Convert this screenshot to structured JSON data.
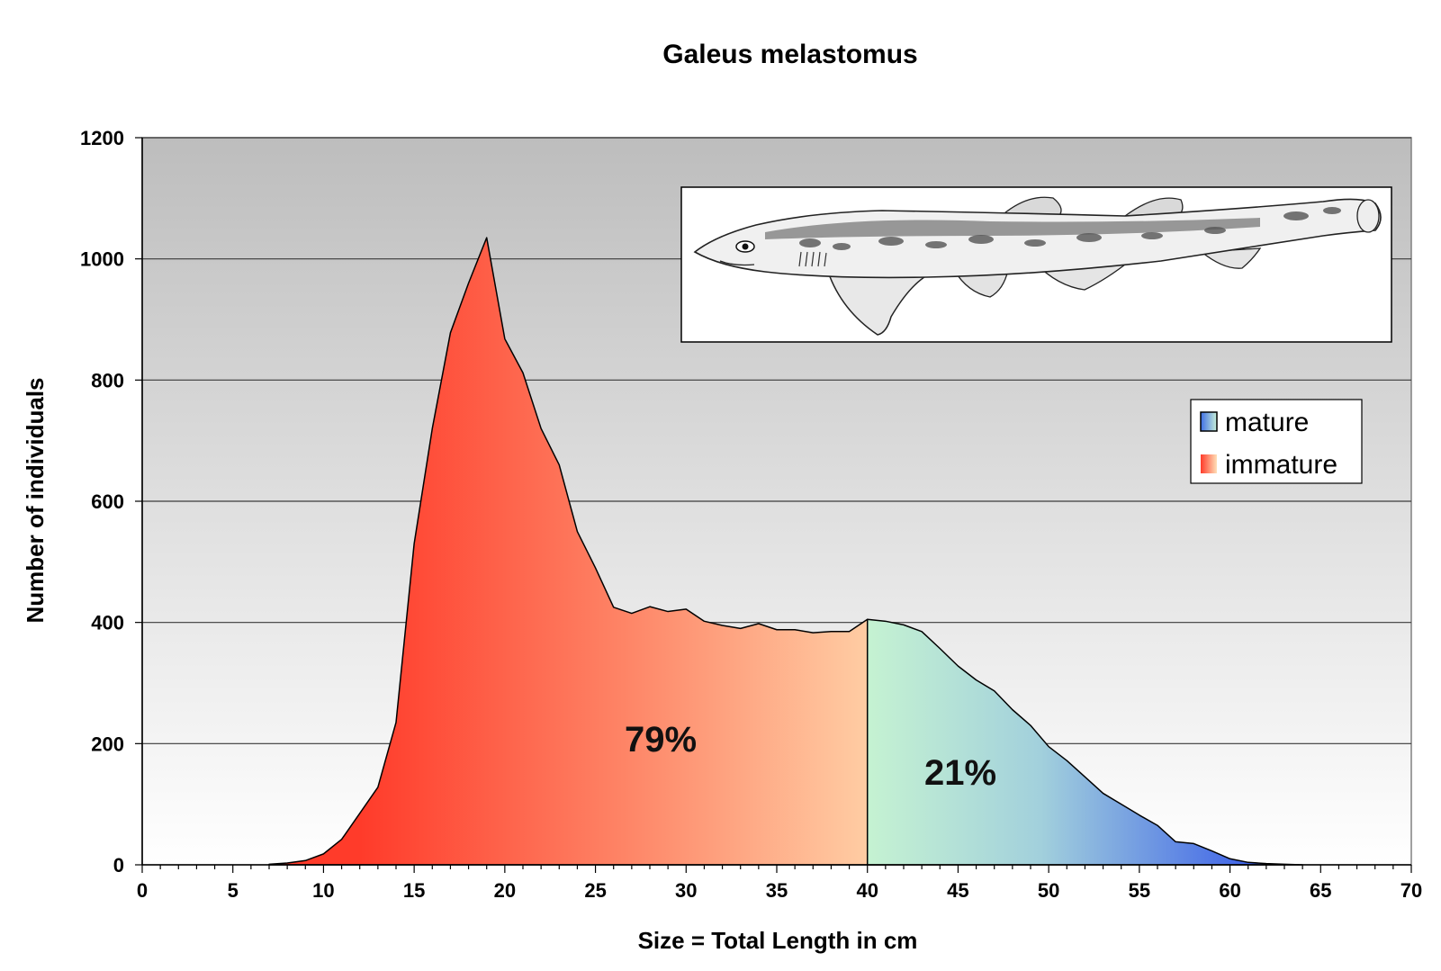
{
  "chart_data": {
    "type": "area",
    "title": "Galeus melastomus",
    "xlabel": "Size = Total Length in cm",
    "ylabel": "Number of individuals",
    "xlim": [
      0,
      70
    ],
    "ylim": [
      0,
      1200
    ],
    "xticks": [
      0,
      5,
      10,
      15,
      20,
      25,
      30,
      35,
      40,
      45,
      50,
      55,
      60,
      65,
      70
    ],
    "yticks": [
      0,
      200,
      400,
      600,
      800,
      1000,
      1200
    ],
    "grid": true,
    "series": [
      {
        "name": "immature",
        "percent_label": "79%",
        "x": [
          7,
          8,
          9,
          10,
          11,
          12,
          13,
          14,
          15,
          16,
          17,
          18,
          19,
          20,
          21,
          22,
          23,
          24,
          25,
          26,
          27,
          28,
          29,
          30,
          31,
          32,
          33,
          34,
          35,
          36,
          37,
          38,
          39,
          40,
          41
        ],
        "values": [
          1,
          3,
          7,
          18,
          42,
          85,
          128,
          235,
          530,
          720,
          878,
          960,
          1035,
          868,
          812,
          720,
          660,
          550,
          490,
          425,
          415,
          426,
          418,
          422,
          402,
          395,
          390,
          398,
          388,
          388,
          383,
          385,
          385,
          405,
          0
        ]
      },
      {
        "name": "mature",
        "percent_label": "21%",
        "x": [
          40,
          41,
          42,
          43,
          44,
          45,
          46,
          47,
          48,
          49,
          50,
          51,
          52,
          53,
          54,
          55,
          56,
          57,
          58,
          59,
          60,
          61,
          62,
          63,
          64
        ],
        "values": [
          405,
          402,
          396,
          385,
          357,
          328,
          305,
          287,
          256,
          230,
          195,
          172,
          145,
          118,
          100,
          82,
          65,
          38,
          35,
          23,
          10,
          4,
          2,
          1,
          0
        ]
      }
    ],
    "legend": {
      "position": "right",
      "items": [
        {
          "label": "mature",
          "colors": [
            "#3f6fe6",
            "#c8f0d8"
          ]
        },
        {
          "label": "immature",
          "colors": [
            "#ff3b2a",
            "#ffd9b0"
          ]
        }
      ]
    },
    "inset_image": "shark-illustration",
    "colors": {
      "immature_start": "#ff3b2a",
      "immature_end": "#ffd2a8",
      "mature_start": "#c5f2d2",
      "mature_end": "#3f63e8",
      "plot_bg_top": "#bdbdbd",
      "plot_bg_bottom": "#ffffff"
    }
  }
}
